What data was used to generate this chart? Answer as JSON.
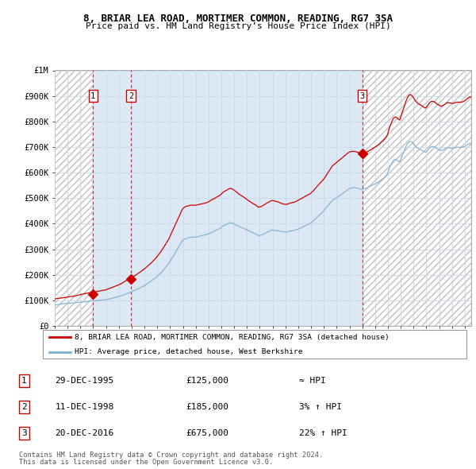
{
  "title": "8, BRIAR LEA ROAD, MORTIMER COMMON, READING, RG7 3SA",
  "subtitle": "Price paid vs. HM Land Registry’s House Price Index (HPI)",
  "sales": [
    {
      "date_label": "29-DEC-1995",
      "date_x": 1995.99,
      "price": 125000,
      "label": "1"
    },
    {
      "date_label": "11-DEC-1998",
      "date_x": 1998.95,
      "price": 185000,
      "label": "2"
    },
    {
      "date_label": "20-DEC-2016",
      "date_x": 2016.99,
      "price": 675000,
      "label": "3"
    }
  ],
  "legend_property": "8, BRIAR LEA ROAD, MORTIMER COMMON, READING, RG7 3SA (detached house)",
  "legend_hpi": "HPI: Average price, detached house, West Berkshire",
  "table_rows": [
    {
      "num": "1",
      "date": "29-DEC-1995",
      "price": "£125,000",
      "hpi": "≈ HPI"
    },
    {
      "num": "2",
      "date": "11-DEC-1998",
      "price": "£185,000",
      "hpi": "3% ↑ HPI"
    },
    {
      "num": "3",
      "date": "20-DEC-2016",
      "price": "£675,000",
      "hpi": "22% ↑ HPI"
    }
  ],
  "footer1": "Contains HM Land Registry data © Crown copyright and database right 2024.",
  "footer2": "This data is licensed under the Open Government Licence v3.0.",
  "hpi_color": "#7bafd4",
  "property_color": "#cc0000",
  "vline_color": "#cc0000",
  "ylim": [
    0,
    1000000
  ],
  "xlim_start": 1993.0,
  "xlim_end": 2025.5,
  "hpi_monthly": [
    80000,
    81000,
    81500,
    82000,
    82500,
    83000,
    83500,
    84000,
    84500,
    85000,
    85500,
    86000,
    87000,
    87500,
    88000,
    88500,
    89000,
    89500,
    90000,
    90500,
    91000,
    91500,
    92000,
    92500,
    93000,
    93500,
    94000,
    94500,
    95000,
    95500,
    96000,
    96500,
    97000,
    97500,
    98000,
    98500,
    99000,
    99500,
    100000,
    100500,
    101000,
    101500,
    102000,
    102500,
    103000,
    103500,
    104000,
    104500,
    105000,
    106000,
    107000,
    108000,
    109000,
    110000,
    111000,
    112000,
    113000,
    114000,
    115000,
    116000,
    117000,
    118500,
    120000,
    121500,
    123000,
    124500,
    126000,
    127500,
    129000,
    130500,
    132000,
    133500,
    135000,
    137000,
    139000,
    141000,
    143000,
    145000,
    147000,
    149000,
    151000,
    153000,
    155000,
    157000,
    159000,
    162000,
    165000,
    168000,
    171000,
    174000,
    177000,
    180000,
    183000,
    186000,
    189000,
    192000,
    196000,
    200000,
    204000,
    208000,
    213000,
    218000,
    223000,
    228000,
    233000,
    238000,
    243000,
    248000,
    255000,
    262000,
    269000,
    276000,
    283000,
    290000,
    297000,
    304000,
    311000,
    318000,
    325000,
    332000,
    337000,
    340000,
    342000,
    344000,
    345000,
    346000,
    347000,
    348000,
    348500,
    349000,
    349500,
    350000,
    350000,
    351000,
    352000,
    353000,
    354000,
    355000,
    356000,
    357000,
    358000,
    359000,
    360000,
    361000,
    363000,
    365000,
    367000,
    369000,
    371000,
    373000,
    375000,
    377000,
    379000,
    381000,
    383000,
    385000,
    388000,
    391000,
    394000,
    396000,
    398000,
    400000,
    402000,
    404000,
    406000,
    405000,
    404000,
    402000,
    400000,
    398000,
    396000,
    394000,
    392000,
    390000,
    388000,
    386000,
    384000,
    382000,
    380000,
    378000,
    376000,
    374000,
    372000,
    370000,
    368000,
    366000,
    364000,
    362000,
    360000,
    358000,
    356000,
    354000,
    355000,
    356000,
    358000,
    360000,
    362000,
    364000,
    366000,
    368000,
    370000,
    372000,
    374000,
    376000,
    376000,
    376000,
    375000,
    374000,
    373000,
    372000,
    371000,
    370000,
    369000,
    368000,
    367000,
    366000,
    366000,
    366000,
    367000,
    368000,
    369000,
    370000,
    371000,
    372000,
    373000,
    374000,
    375000,
    376000,
    378000,
    380000,
    382000,
    384000,
    386000,
    388000,
    390000,
    392000,
    394000,
    396000,
    398000,
    400000,
    403000,
    406000,
    410000,
    414000,
    418000,
    422000,
    426000,
    430000,
    434000,
    438000,
    442000,
    446000,
    450000,
    455000,
    460000,
    465000,
    470000,
    475000,
    480000,
    485000,
    490000,
    493000,
    496000,
    499000,
    502000,
    505000,
    508000,
    511000,
    514000,
    517000,
    520000,
    523000,
    526000,
    529000,
    532000,
    535000,
    537000,
    539000,
    540000,
    541000,
    542000,
    541000,
    540000,
    539000,
    538000,
    537000,
    536000,
    535000,
    535000,
    536000,
    537000,
    538000,
    540000,
    542000,
    544000,
    546000,
    548000,
    550000,
    552000,
    554000,
    556000,
    558000,
    560000,
    562000,
    565000,
    568000,
    571000,
    574000,
    578000,
    582000,
    586000,
    590000,
    600000,
    612000,
    622000,
    630000,
    638000,
    645000,
    648000,
    650000,
    648000,
    645000,
    642000,
    640000,
    650000,
    660000,
    670000,
    680000,
    690000,
    700000,
    708000,
    714000,
    718000,
    720000,
    718000,
    715000,
    710000,
    705000,
    700000,
    696000,
    693000,
    690000,
    688000,
    686000,
    684000,
    682000,
    680000,
    678000,
    680000,
    685000,
    690000,
    695000,
    698000,
    700000,
    700000,
    700000,
    698000,
    695000,
    692000,
    690000,
    688000,
    686000,
    685000,
    686000,
    688000,
    690000,
    692000,
    694000,
    695000,
    695000,
    694000,
    693000,
    692000,
    692000,
    693000,
    694000,
    695000,
    695000,
    695000,
    695000,
    695000,
    696000,
    697000,
    698000,
    700000,
    703000,
    706000,
    708000,
    710000,
    711000,
    712000,
    712000,
    712000,
    712000,
    712000,
    712000
  ]
}
